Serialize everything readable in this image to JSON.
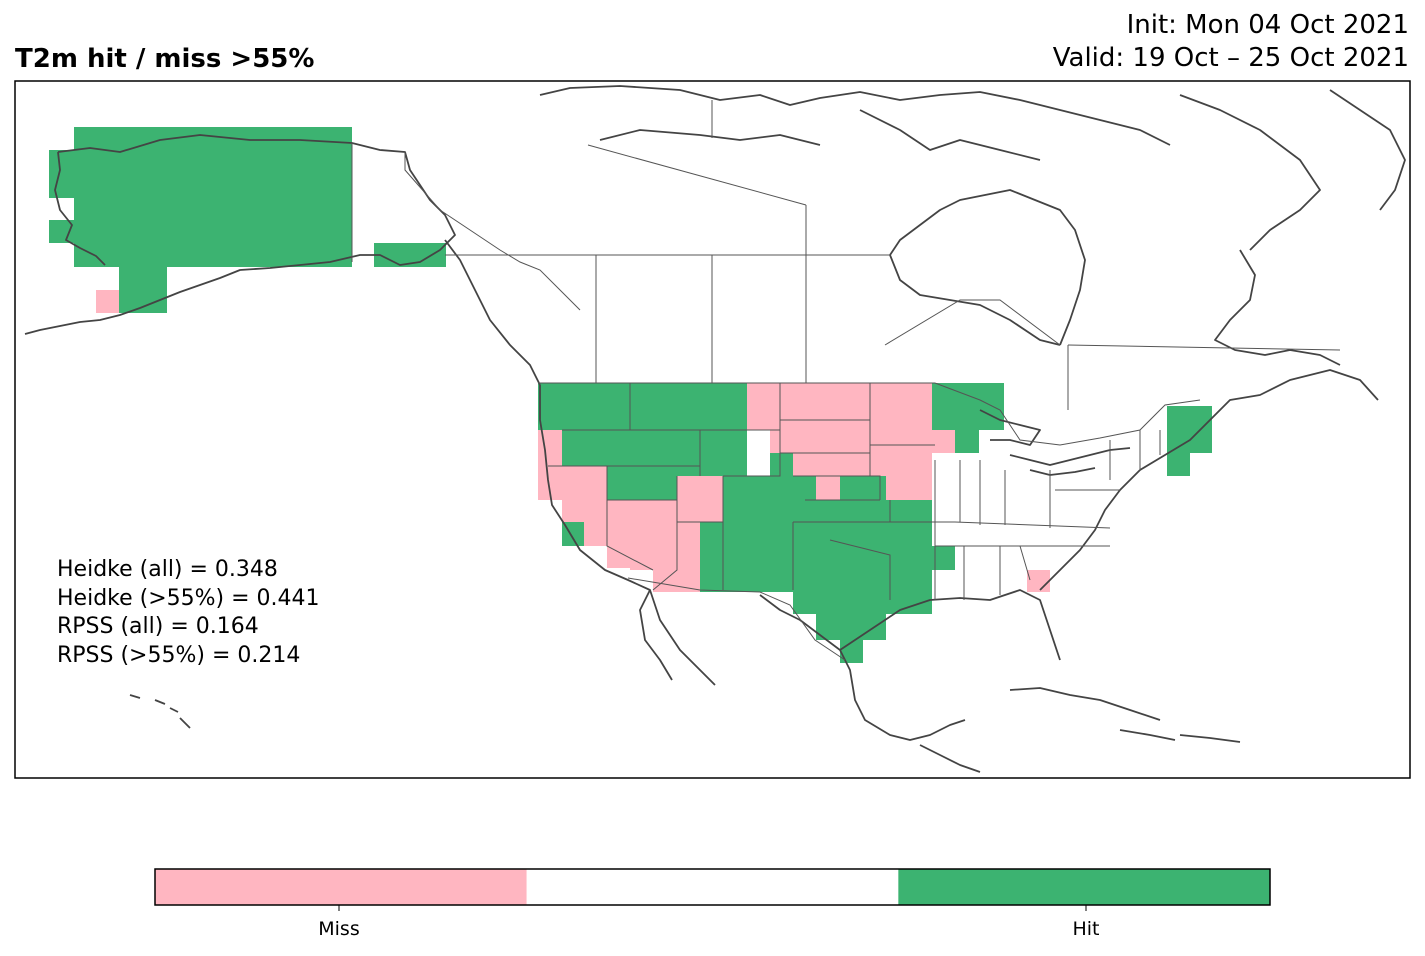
{
  "title": "T2m hit / miss  >55%",
  "init_text": "Init: Mon 04 Oct 2021",
  "valid_text": "Valid: 19 Oct – 25 Oct 2021",
  "stats": [
    "Heidke (all) = 0.348",
    "Heidke (>55%) = 0.441",
    "RPSS (all) = 0.164",
    "RPSS (>55%) = 0.214"
  ],
  "legend": {
    "categories": [
      "Miss",
      "",
      "Hit"
    ],
    "colors": [
      "#ffb6c1",
      "#ffffff",
      "#3cb371"
    ],
    "tick_labels": [
      "Miss",
      "Hit"
    ]
  },
  "colors": {
    "hit": "#3cb371",
    "miss": "#ffb6c1",
    "coast": "#444444",
    "border": "#555555",
    "frame": "#000000"
  }
}
